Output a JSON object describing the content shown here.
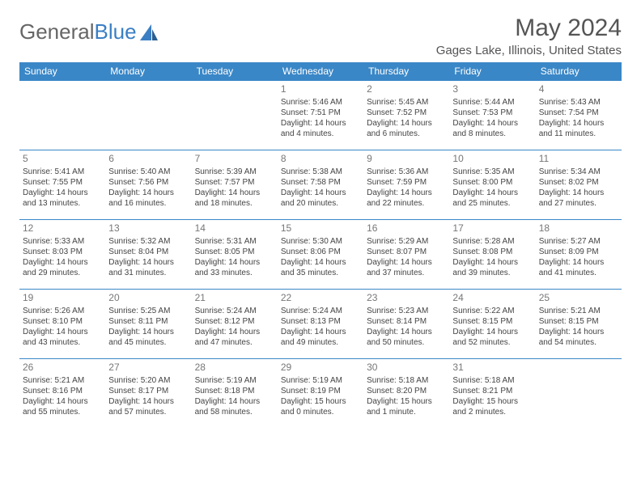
{
  "logo": {
    "part1": "General",
    "part2": "Blue"
  },
  "title": "May 2024",
  "location": "Gages Lake, Illinois, United States",
  "day_headers": [
    "Sunday",
    "Monday",
    "Tuesday",
    "Wednesday",
    "Thursday",
    "Friday",
    "Saturday"
  ],
  "colors": {
    "header_bg": "#3a87c7",
    "header_fg": "#ffffff",
    "border": "#3a87c7",
    "logo_gray": "#666666",
    "logo_blue": "#3a7fc4",
    "text": "#444444"
  },
  "weeks": [
    [
      null,
      null,
      null,
      {
        "n": "1",
        "sr": "Sunrise: 5:46 AM",
        "ss": "Sunset: 7:51 PM",
        "d1": "Daylight: 14 hours",
        "d2": "and 4 minutes."
      },
      {
        "n": "2",
        "sr": "Sunrise: 5:45 AM",
        "ss": "Sunset: 7:52 PM",
        "d1": "Daylight: 14 hours",
        "d2": "and 6 minutes."
      },
      {
        "n": "3",
        "sr": "Sunrise: 5:44 AM",
        "ss": "Sunset: 7:53 PM",
        "d1": "Daylight: 14 hours",
        "d2": "and 8 minutes."
      },
      {
        "n": "4",
        "sr": "Sunrise: 5:43 AM",
        "ss": "Sunset: 7:54 PM",
        "d1": "Daylight: 14 hours",
        "d2": "and 11 minutes."
      }
    ],
    [
      {
        "n": "5",
        "sr": "Sunrise: 5:41 AM",
        "ss": "Sunset: 7:55 PM",
        "d1": "Daylight: 14 hours",
        "d2": "and 13 minutes."
      },
      {
        "n": "6",
        "sr": "Sunrise: 5:40 AM",
        "ss": "Sunset: 7:56 PM",
        "d1": "Daylight: 14 hours",
        "d2": "and 16 minutes."
      },
      {
        "n": "7",
        "sr": "Sunrise: 5:39 AM",
        "ss": "Sunset: 7:57 PM",
        "d1": "Daylight: 14 hours",
        "d2": "and 18 minutes."
      },
      {
        "n": "8",
        "sr": "Sunrise: 5:38 AM",
        "ss": "Sunset: 7:58 PM",
        "d1": "Daylight: 14 hours",
        "d2": "and 20 minutes."
      },
      {
        "n": "9",
        "sr": "Sunrise: 5:36 AM",
        "ss": "Sunset: 7:59 PM",
        "d1": "Daylight: 14 hours",
        "d2": "and 22 minutes."
      },
      {
        "n": "10",
        "sr": "Sunrise: 5:35 AM",
        "ss": "Sunset: 8:00 PM",
        "d1": "Daylight: 14 hours",
        "d2": "and 25 minutes."
      },
      {
        "n": "11",
        "sr": "Sunrise: 5:34 AM",
        "ss": "Sunset: 8:02 PM",
        "d1": "Daylight: 14 hours",
        "d2": "and 27 minutes."
      }
    ],
    [
      {
        "n": "12",
        "sr": "Sunrise: 5:33 AM",
        "ss": "Sunset: 8:03 PM",
        "d1": "Daylight: 14 hours",
        "d2": "and 29 minutes."
      },
      {
        "n": "13",
        "sr": "Sunrise: 5:32 AM",
        "ss": "Sunset: 8:04 PM",
        "d1": "Daylight: 14 hours",
        "d2": "and 31 minutes."
      },
      {
        "n": "14",
        "sr": "Sunrise: 5:31 AM",
        "ss": "Sunset: 8:05 PM",
        "d1": "Daylight: 14 hours",
        "d2": "and 33 minutes."
      },
      {
        "n": "15",
        "sr": "Sunrise: 5:30 AM",
        "ss": "Sunset: 8:06 PM",
        "d1": "Daylight: 14 hours",
        "d2": "and 35 minutes."
      },
      {
        "n": "16",
        "sr": "Sunrise: 5:29 AM",
        "ss": "Sunset: 8:07 PM",
        "d1": "Daylight: 14 hours",
        "d2": "and 37 minutes."
      },
      {
        "n": "17",
        "sr": "Sunrise: 5:28 AM",
        "ss": "Sunset: 8:08 PM",
        "d1": "Daylight: 14 hours",
        "d2": "and 39 minutes."
      },
      {
        "n": "18",
        "sr": "Sunrise: 5:27 AM",
        "ss": "Sunset: 8:09 PM",
        "d1": "Daylight: 14 hours",
        "d2": "and 41 minutes."
      }
    ],
    [
      {
        "n": "19",
        "sr": "Sunrise: 5:26 AM",
        "ss": "Sunset: 8:10 PM",
        "d1": "Daylight: 14 hours",
        "d2": "and 43 minutes."
      },
      {
        "n": "20",
        "sr": "Sunrise: 5:25 AM",
        "ss": "Sunset: 8:11 PM",
        "d1": "Daylight: 14 hours",
        "d2": "and 45 minutes."
      },
      {
        "n": "21",
        "sr": "Sunrise: 5:24 AM",
        "ss": "Sunset: 8:12 PM",
        "d1": "Daylight: 14 hours",
        "d2": "and 47 minutes."
      },
      {
        "n": "22",
        "sr": "Sunrise: 5:24 AM",
        "ss": "Sunset: 8:13 PM",
        "d1": "Daylight: 14 hours",
        "d2": "and 49 minutes."
      },
      {
        "n": "23",
        "sr": "Sunrise: 5:23 AM",
        "ss": "Sunset: 8:14 PM",
        "d1": "Daylight: 14 hours",
        "d2": "and 50 minutes."
      },
      {
        "n": "24",
        "sr": "Sunrise: 5:22 AM",
        "ss": "Sunset: 8:15 PM",
        "d1": "Daylight: 14 hours",
        "d2": "and 52 minutes."
      },
      {
        "n": "25",
        "sr": "Sunrise: 5:21 AM",
        "ss": "Sunset: 8:15 PM",
        "d1": "Daylight: 14 hours",
        "d2": "and 54 minutes."
      }
    ],
    [
      {
        "n": "26",
        "sr": "Sunrise: 5:21 AM",
        "ss": "Sunset: 8:16 PM",
        "d1": "Daylight: 14 hours",
        "d2": "and 55 minutes."
      },
      {
        "n": "27",
        "sr": "Sunrise: 5:20 AM",
        "ss": "Sunset: 8:17 PM",
        "d1": "Daylight: 14 hours",
        "d2": "and 57 minutes."
      },
      {
        "n": "28",
        "sr": "Sunrise: 5:19 AM",
        "ss": "Sunset: 8:18 PM",
        "d1": "Daylight: 14 hours",
        "d2": "and 58 minutes."
      },
      {
        "n": "29",
        "sr": "Sunrise: 5:19 AM",
        "ss": "Sunset: 8:19 PM",
        "d1": "Daylight: 15 hours",
        "d2": "and 0 minutes."
      },
      {
        "n": "30",
        "sr": "Sunrise: 5:18 AM",
        "ss": "Sunset: 8:20 PM",
        "d1": "Daylight: 15 hours",
        "d2": "and 1 minute."
      },
      {
        "n": "31",
        "sr": "Sunrise: 5:18 AM",
        "ss": "Sunset: 8:21 PM",
        "d1": "Daylight: 15 hours",
        "d2": "and 2 minutes."
      },
      null
    ]
  ]
}
